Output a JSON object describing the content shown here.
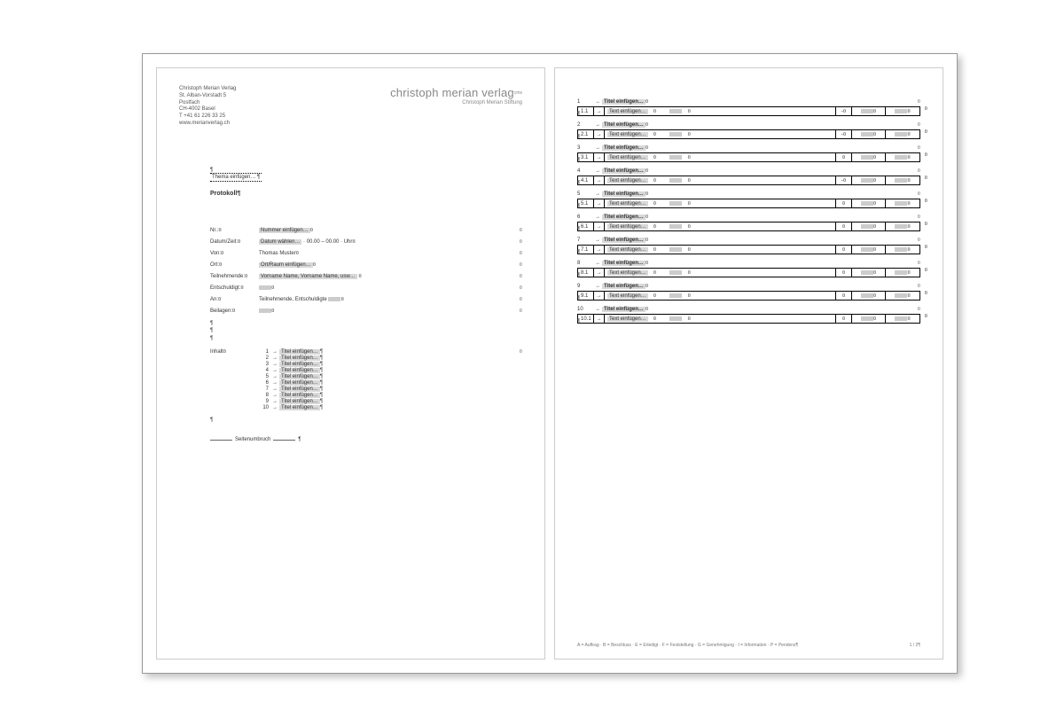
{
  "letterhead": {
    "lines": [
      "Christoph Merian Verlag",
      "St. Alban-Vorstadt 5",
      "Postfach",
      "CH-4002 Basel",
      "T +41 61 226 33 25",
      "www.merianverlag.ch"
    ],
    "logo_main": "christoph merian verlag",
    "logo_sup": "cms",
    "logo_sub": "Christoph Merian Stiftung"
  },
  "left": {
    "topic": "Thema einfügen… ¶",
    "protokoll": "Protokoll¶",
    "meta": [
      {
        "label": "Nr.:¤",
        "value_type": "ph",
        "value": "Nummer einfügen…",
        "suffix": "¤"
      },
      {
        "label": "Datum/Zeit:¤",
        "value_type": "mixed",
        "value": "Datum wählen…",
        "extra": " · 00.00 – 00.00 · Uhr¤"
      },
      {
        "label": "Von:¤",
        "value_type": "text",
        "value": "Thomas Muster¤"
      },
      {
        "label": "Ort:¤",
        "value_type": "ph",
        "value": "Ort/Raum einfügen…",
        "suffix": "¤"
      },
      {
        "label": "Teilnehmende:¤",
        "value_type": "ph",
        "value": "Vorname Name, Vorname Name, usw…",
        "suffix": " ¤"
      },
      {
        "label": "Entschuldigt:¤",
        "value_type": "blur",
        "value": "▪▪▪▪▪",
        "suffix": "¤"
      },
      {
        "label": "An:¤",
        "value_type": "text_blur",
        "value": "Teilnehmende, Entschuldigte ",
        "blur": "▪▪▪▪▪",
        "suffix": "¤"
      },
      {
        "label": "Beilagen:¤",
        "value_type": "blur",
        "value": "▪▪▪▪▪",
        "suffix": "¤"
      }
    ],
    "toc_label": "Inhalt¤",
    "toc": [
      "Titel einfügen…",
      "Titel einfügen…",
      "Titel einfügen…",
      "Titel einfügen…",
      "Titel einfügen…",
      "Titel einfügen…",
      "Titel einfügen…",
      "Titel einfügen…",
      "Titel einfügen…",
      "Titel einfügen…"
    ],
    "pagebreak": "Seitenumbruch"
  },
  "right": {
    "sections": [
      {
        "n": "1",
        "sub": "1.1",
        "sym": "-¤"
      },
      {
        "n": "2",
        "sub": "2.1",
        "sym": "-¤"
      },
      {
        "n": "3",
        "sub": "3.1",
        "sym": "¤"
      },
      {
        "n": "4",
        "sub": "4.1",
        "sym": "-¤"
      },
      {
        "n": "5",
        "sub": "5.1",
        "sym": "¤"
      },
      {
        "n": "6",
        "sub": "6.1",
        "sym": "¤"
      },
      {
        "n": "7",
        "sub": "7.1",
        "sym": "¤"
      },
      {
        "n": "8",
        "sub": "8.1",
        "sym": "¤"
      },
      {
        "n": "9",
        "sub": "9.1",
        "sym": "¤"
      },
      {
        "n": "10",
        "sub": "10.1",
        "sym": "¤"
      }
    ],
    "title_ph": "Titel einfügen…",
    "text_ph": "Text einfügen…",
    "blur": "▪▪▪▪▪",
    "footer_left": "A = Auftrag · B = Beschluss · E = Erledigt · F = Feststellung · G = Genehmigung · I = Information · P = Pendenz¶",
    "footer_right": "1 / 2¶"
  },
  "marks": {
    "pilcrow": "¶",
    "currency": "¤",
    "arrow": "→"
  },
  "colors": {
    "page_border": "#cccccc",
    "frame_border": "#999999",
    "placeholder_bg": "#d8d8d8",
    "blur_bg": "#cccccc",
    "text": "#333333",
    "muted": "#888888"
  }
}
